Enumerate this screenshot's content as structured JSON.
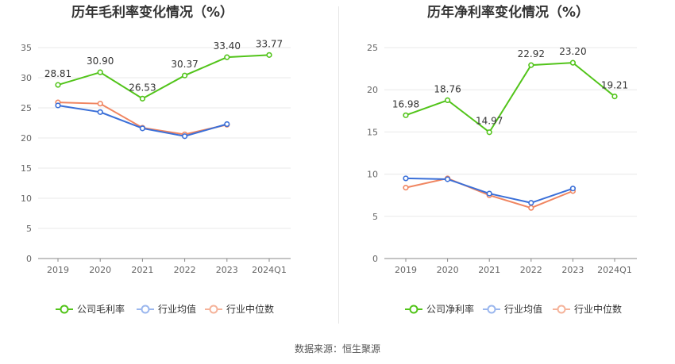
{
  "source_text": "数据来源：恒生聚源",
  "chart_data": [
    {
      "type": "line",
      "title": "历年毛利率变化情况（%）",
      "categories": [
        "2019",
        "2020",
        "2021",
        "2022",
        "2023",
        "2024Q1"
      ],
      "ylim": [
        0,
        35
      ],
      "yticks": [
        0,
        5,
        10,
        15,
        20,
        25,
        30,
        35
      ],
      "grid": true,
      "legend_position": "bottom",
      "series": [
        {
          "name": "公司毛利率",
          "color": "#52c41a",
          "values": [
            28.81,
            30.9,
            26.53,
            30.37,
            33.4,
            33.77
          ],
          "labels": [
            "28.81",
            "30.90",
            "26.53",
            "30.37",
            "33.40",
            "33.77"
          ]
        },
        {
          "name": "行业均值",
          "color": "#3a6fd8",
          "values": [
            25.4,
            24.3,
            21.6,
            20.3,
            22.3,
            null
          ],
          "labels": []
        },
        {
          "name": "行业中位数",
          "color": "#f08560",
          "values": [
            25.9,
            25.7,
            21.7,
            20.6,
            22.2,
            null
          ],
          "labels": []
        }
      ]
    },
    {
      "type": "line",
      "title": "历年净利率变化情况（%）",
      "categories": [
        "2019",
        "2020",
        "2021",
        "2022",
        "2023",
        "2024Q1"
      ],
      "ylim": [
        0,
        25
      ],
      "yticks": [
        0,
        5,
        10,
        15,
        20,
        25
      ],
      "grid": true,
      "legend_position": "bottom",
      "series": [
        {
          "name": "公司净利率",
          "color": "#52c41a",
          "values": [
            16.98,
            18.76,
            14.97,
            22.92,
            23.2,
            19.21
          ],
          "labels": [
            "16.98",
            "18.76",
            "14.97",
            "22.92",
            "23.20",
            "19.21"
          ]
        },
        {
          "name": "行业均值",
          "color": "#3a6fd8",
          "values": [
            9.5,
            9.4,
            7.7,
            6.6,
            8.3,
            null
          ],
          "labels": []
        },
        {
          "name": "行业中位数",
          "color": "#f08560",
          "values": [
            8.4,
            9.5,
            7.5,
            6.0,
            8.0,
            null
          ],
          "labels": []
        }
      ]
    }
  ]
}
